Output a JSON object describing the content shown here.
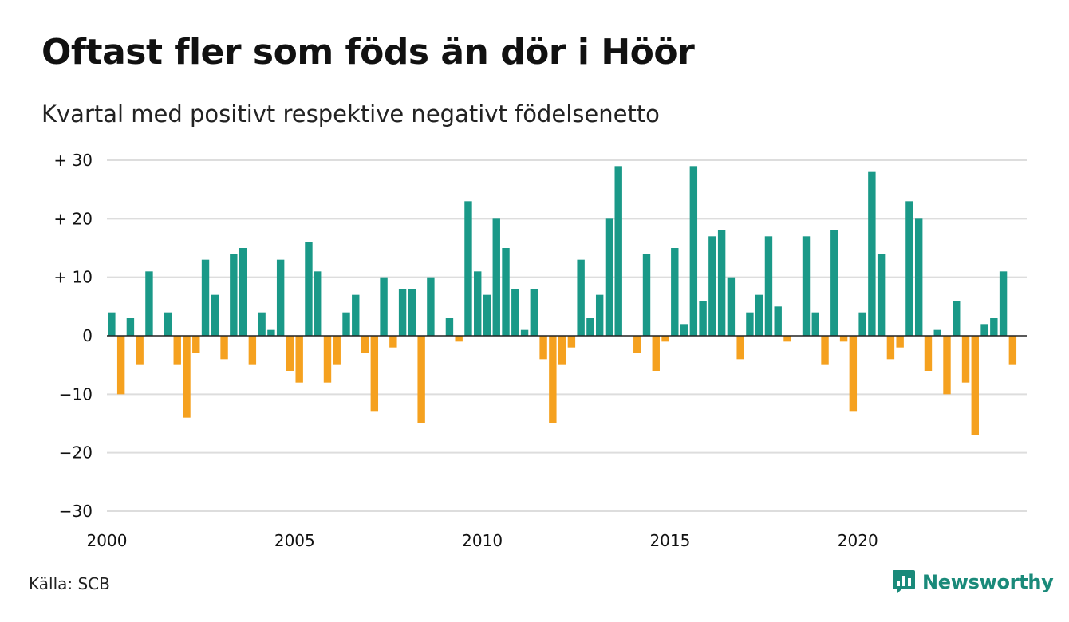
{
  "title": "Oftast fler som föds än dör i Höör",
  "subtitle": "Kvartal med positivt respektive negativt födelsenetto",
  "source": "Källa: SCB",
  "brand": {
    "name": "Newsworthy",
    "icon": "newsworthy-logo-icon"
  },
  "colors": {
    "positive": "#1a9988",
    "negative": "#f5a11f",
    "grid": "#dddddd",
    "brand": "#1a8a7a"
  },
  "chart_data": {
    "type": "bar",
    "title": "Oftast fler som föds än dör i Höör",
    "subtitle": "Kvartal med positivt respektive negativt födelsenetto",
    "xlabel": "",
    "ylabel": "",
    "ylim": [
      -30,
      30
    ],
    "xlim": [
      2000,
      2024.5
    ],
    "yticks": [
      30,
      20,
      10,
      0,
      -10,
      -20,
      -30
    ],
    "ytick_labels": [
      "+ 30",
      "+ 20",
      "+ 10",
      "0",
      "−10",
      "−20",
      "−30"
    ],
    "xticks": [
      2000,
      2005,
      2010,
      2015,
      2020
    ],
    "xtick_labels": [
      "2000",
      "2005",
      "2010",
      "2015",
      "2020"
    ],
    "grid": true,
    "legend": "none",
    "start_year": 2000,
    "periods_per_year": 4,
    "values": [
      4,
      -10,
      3,
      -5,
      11,
      0,
      4,
      -5,
      -14,
      -3,
      13,
      7,
      -4,
      14,
      15,
      -5,
      4,
      1,
      13,
      -6,
      -8,
      16,
      11,
      -8,
      -5,
      4,
      7,
      -3,
      -13,
      10,
      -2,
      8,
      8,
      -15,
      10,
      0,
      3,
      -1,
      23,
      11,
      7,
      20,
      15,
      8,
      1,
      8,
      -4,
      -15,
      -5,
      -2,
      13,
      3,
      7,
      20,
      29,
      0,
      -3,
      14,
      -6,
      -1,
      15,
      2,
      29,
      6,
      17,
      18,
      10,
      -4,
      4,
      7,
      17,
      5,
      -1,
      0,
      17,
      4,
      -5,
      18,
      -1,
      -13,
      4,
      28,
      14,
      -4,
      -2,
      23,
      20,
      -6,
      1,
      -10,
      6,
      -8,
      -17,
      2,
      3,
      11,
      -5
    ]
  }
}
